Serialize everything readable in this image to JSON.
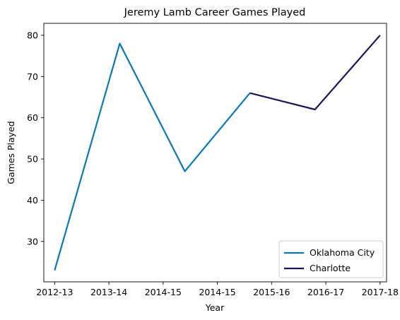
{
  "chart_data": {
    "type": "line",
    "title": "Jeremy Lamb Career Games Played",
    "xlabel": "Year",
    "ylabel": "Games Played",
    "x_tick_labels": [
      "2012-13",
      "2013-14",
      "2014-15",
      "2014-15",
      "2015-16",
      "2016-17",
      "2017-18"
    ],
    "yticks": [
      30,
      40,
      50,
      60,
      70,
      80
    ],
    "xlim": [
      -0.25,
      7.65
    ],
    "ylim": [
      20.2,
      82.9
    ],
    "grid": false,
    "legend_position": "lower-right",
    "series": [
      {
        "name": "Oklahoma City",
        "color": "#0a77b9",
        "x": [
          0,
          1.5,
          3,
          4.5
        ],
        "y": [
          23,
          78,
          47,
          66
        ]
      },
      {
        "name": "Charlotte",
        "color": "#1b1557",
        "x": [
          4.5,
          6,
          7.5
        ],
        "y": [
          66,
          62,
          80
        ]
      }
    ]
  }
}
